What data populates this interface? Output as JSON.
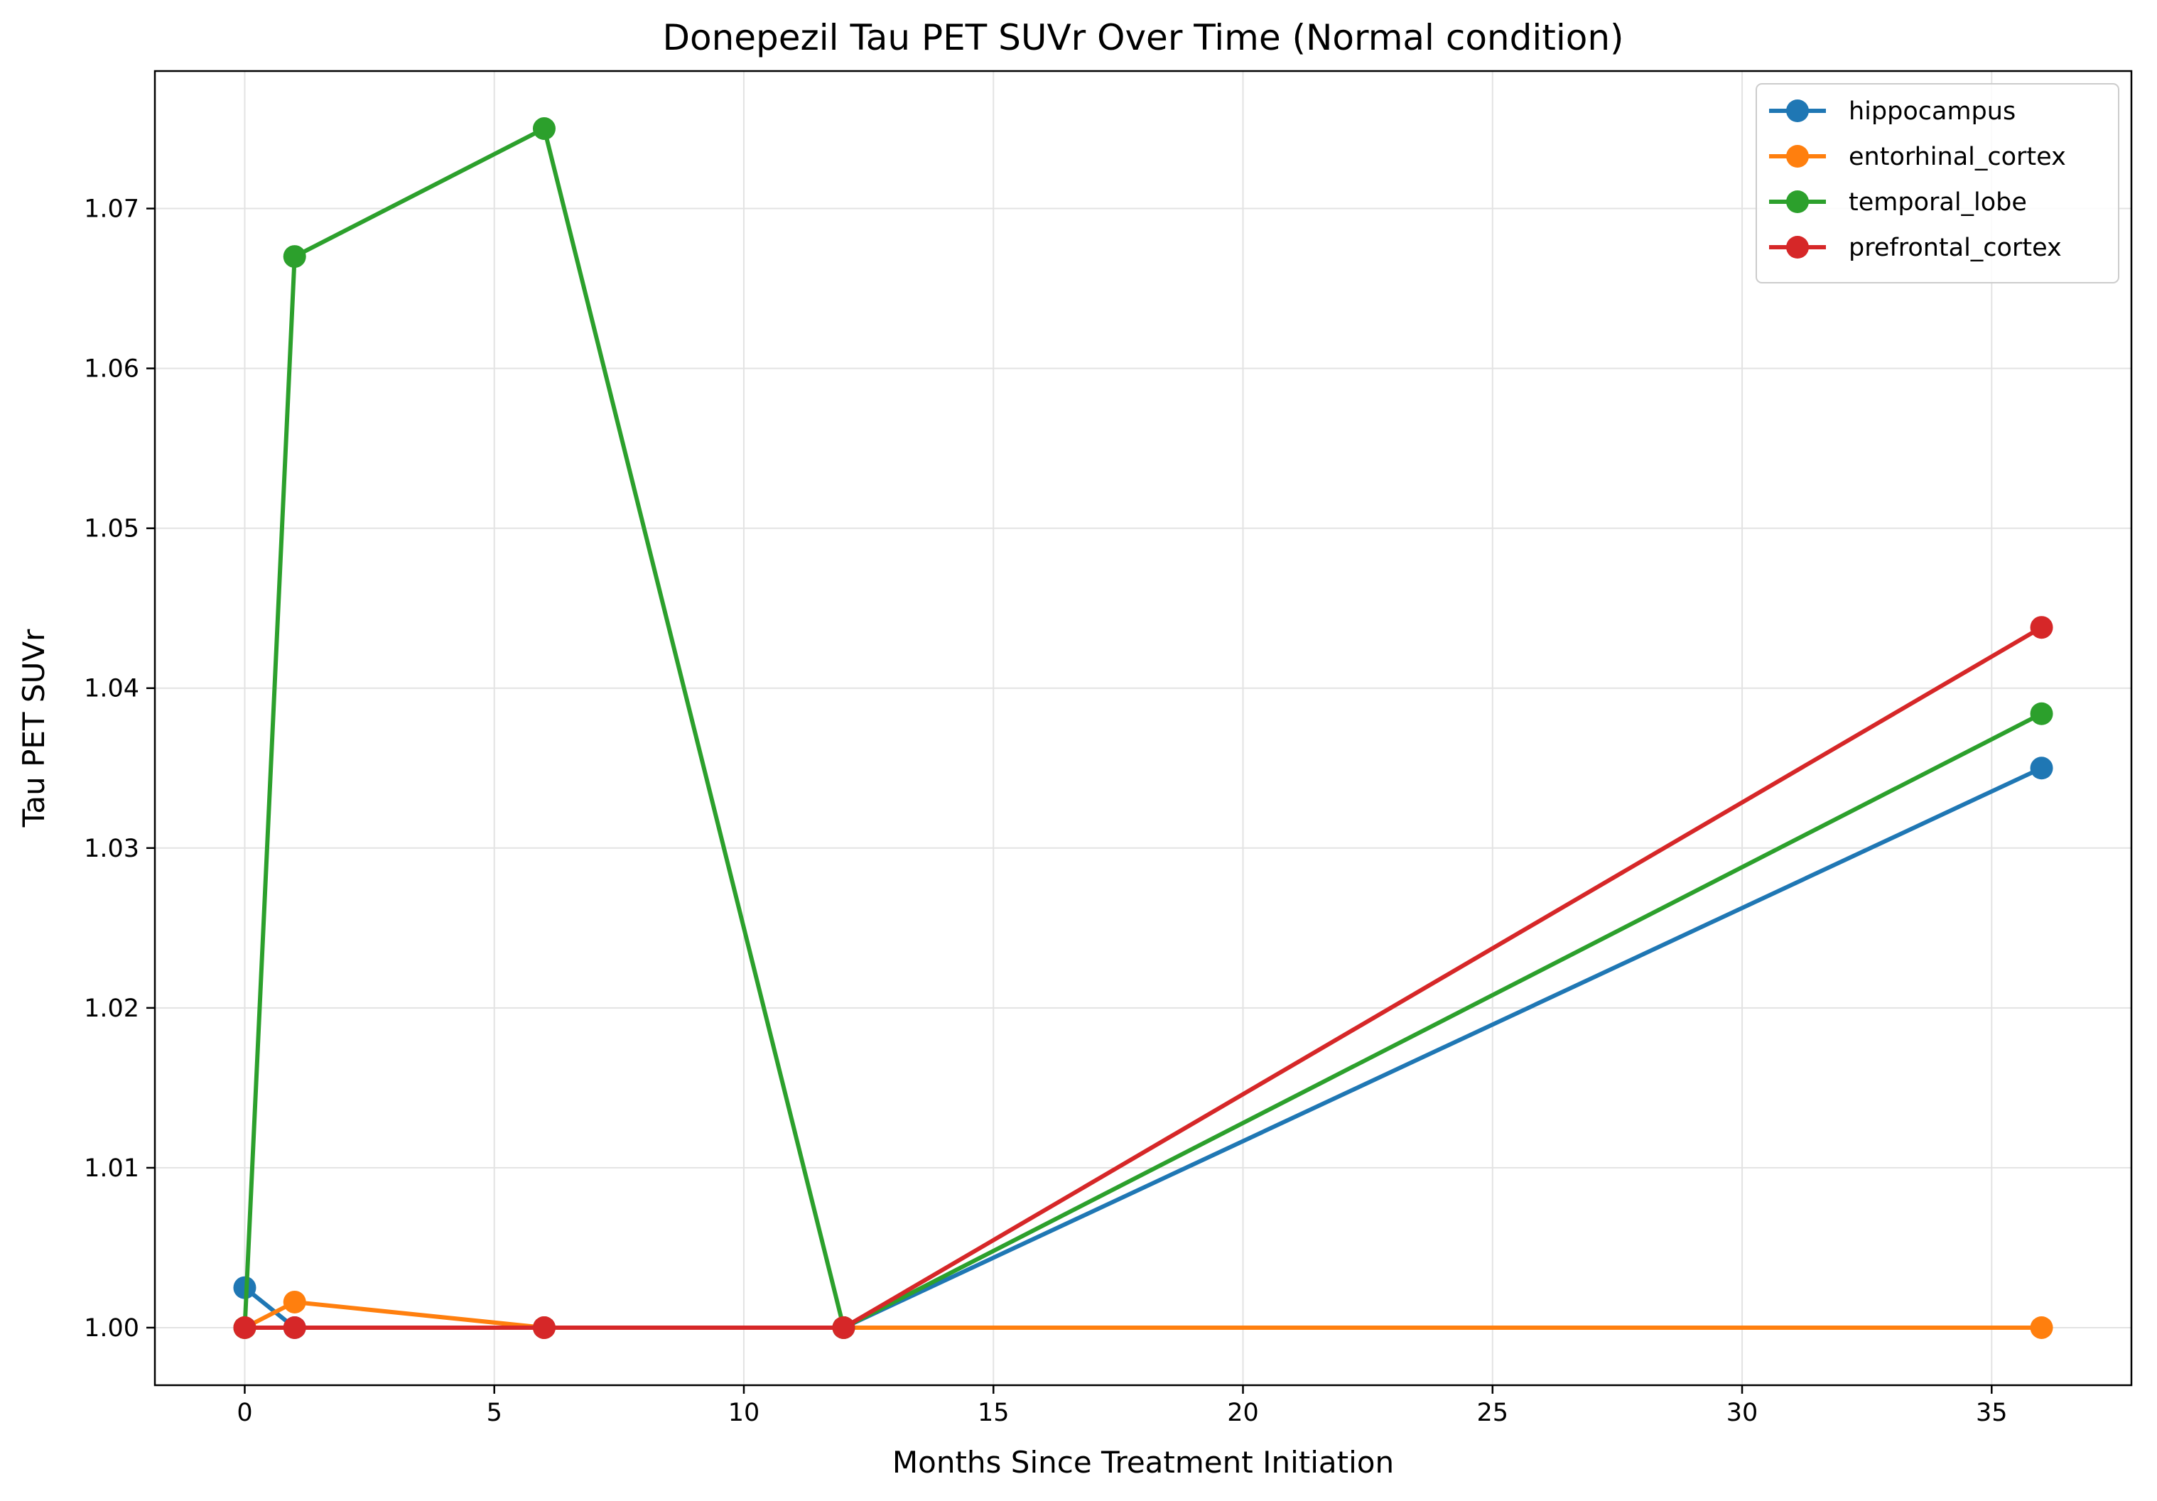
{
  "chart_data": {
    "type": "line",
    "title": "Donepezil Tau PET SUVr Over Time (Normal condition)",
    "xlabel": "Months Since Treatment Initiation",
    "ylabel": "Tau PET SUVr",
    "xlim": [
      -1.8,
      37.8
    ],
    "ylim": [
      0.9964,
      1.0786
    ],
    "xticks": [
      0,
      5,
      10,
      15,
      20,
      25,
      30,
      35
    ],
    "yticks": [
      1.0,
      1.01,
      1.02,
      1.03,
      1.04,
      1.05,
      1.06,
      1.07
    ],
    "grid": true,
    "legend_position": "top-right",
    "x": [
      0,
      1,
      6,
      12,
      36
    ],
    "series": [
      {
        "name": "hippocampus",
        "color": "#1f77b4",
        "values": [
          1.0025,
          1.0,
          1.0,
          1.0,
          1.035
        ]
      },
      {
        "name": "entorhinal_cortex",
        "color": "#ff7f0e",
        "values": [
          1.0,
          1.0016,
          1.0,
          1.0,
          1.0
        ]
      },
      {
        "name": "temporal_lobe",
        "color": "#2ca02c",
        "values": [
          1.0,
          1.067,
          1.075,
          1.0,
          1.0384
        ]
      },
      {
        "name": "prefrontal_cortex",
        "color": "#d62728",
        "values": [
          1.0,
          1.0,
          1.0,
          1.0,
          1.0438
        ]
      }
    ]
  }
}
